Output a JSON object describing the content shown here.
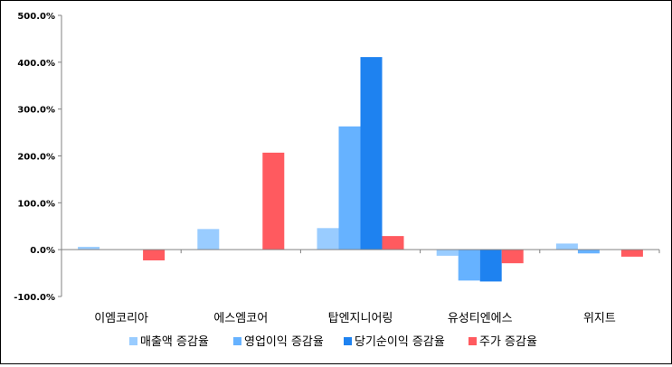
{
  "chart_data": {
    "type": "bar",
    "categories": [
      "이엠코리아",
      "에스엠코어",
      "탑엔지니어링",
      "유성티엔에스",
      "위지트"
    ],
    "series": [
      {
        "name": "매출액 증감율",
        "color": "#99ccff",
        "values": [
          6,
          44,
          46,
          -13,
          13
        ]
      },
      {
        "name": "영업이익 증감율",
        "color": "#66b2ff",
        "values": [
          0,
          0,
          263,
          -66,
          -8
        ]
      },
      {
        "name": "당기순이익 증감율",
        "color": "#1e82f0",
        "values": [
          0,
          0,
          411,
          -68,
          0
        ]
      },
      {
        "name": "주가 증감율",
        "color": "#ff5a5f",
        "values": [
          -23,
          207,
          29,
          -29,
          -15
        ]
      }
    ],
    "ylim": [
      -100,
      500
    ],
    "yticks": [
      -100,
      0,
      100,
      200,
      300,
      400,
      500
    ],
    "ytick_labels": [
      "-100.0%",
      "0.0%",
      "100.0%",
      "200.0%",
      "300.0%",
      "400.0%",
      "500.0%"
    ],
    "grid": false,
    "legend_position": "bottom"
  }
}
